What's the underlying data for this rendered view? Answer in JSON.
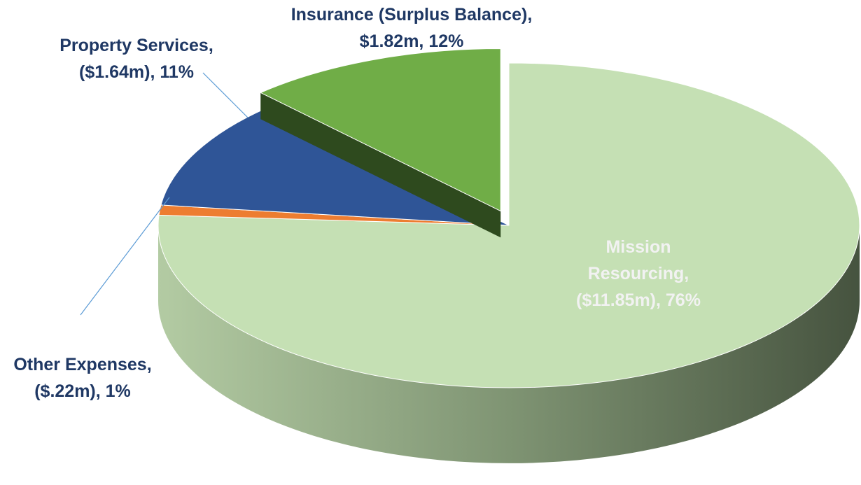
{
  "chart_data": {
    "type": "pie3d",
    "categories": [
      "Mission Resourcing,",
      "Other Expenses,",
      "Property Services,",
      "Insurance (Surplus Balance),"
    ],
    "values": [
      76,
      1,
      11,
      12
    ],
    "value_labels": [
      "($11.85m), 76%",
      "($.22m), 1%",
      "($1.64m), 11%",
      "$1.82m, 12%"
    ],
    "colors": [
      "#c5e0b4",
      "#ed7d31",
      "#2f5597",
      "#70ad47"
    ],
    "exploded": [
      false,
      false,
      false,
      true
    ]
  }
}
